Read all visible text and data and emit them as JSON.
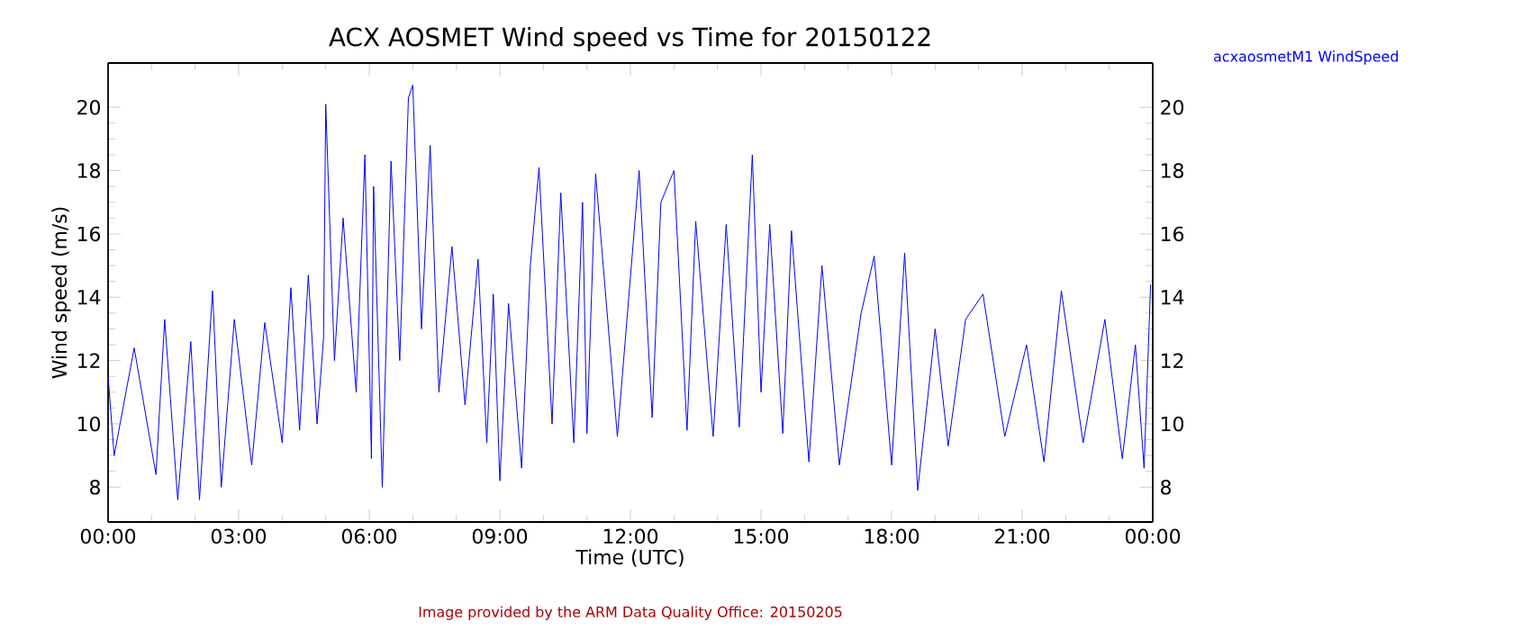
{
  "chart_data": {
    "type": "line",
    "title": "ACX AOSMET Wind speed vs Time for 20150122",
    "xlabel": "Time (UTC)",
    "ylabel": "Wind speed (m/s)",
    "annotations": [
      "Image provided by the ARM Data Quality Office: 20150205"
    ],
    "xlim": [
      0,
      24
    ],
    "xticks": [
      {
        "value": 0,
        "label": "00:00"
      },
      {
        "value": 3,
        "label": "03:00"
      },
      {
        "value": 6,
        "label": "06:00"
      },
      {
        "value": 9,
        "label": "09:00"
      },
      {
        "value": 12,
        "label": "12:00"
      },
      {
        "value": 15,
        "label": "15:00"
      },
      {
        "value": 18,
        "label": "18:00"
      },
      {
        "value": 21,
        "label": "21:00"
      },
      {
        "value": 24,
        "label": "00:00"
      }
    ],
    "ylim": [
      6.9,
      21.4
    ],
    "yticks": [
      8,
      10,
      12,
      14,
      16,
      18,
      20
    ],
    "y2lim": [
      6.9,
      21.4
    ],
    "y2ticks": [
      8,
      10,
      12,
      14,
      16,
      18,
      20
    ],
    "legend": "top right",
    "marker": "none",
    "series": [
      {
        "name": "acxaosmetM1 WindSpeed",
        "color": "#0000ff",
        "x": [
          0,
          0.14,
          0.6,
          1.1,
          1.3,
          1.6,
          1.9,
          2.1,
          2.4,
          2.6,
          2.9,
          3.3,
          3.6,
          4.0,
          4.2,
          4.4,
          4.6,
          4.8,
          4.95,
          5.0,
          5.2,
          5.4,
          5.7,
          5.9,
          6.05,
          6.1,
          6.3,
          6.5,
          6.7,
          6.9,
          7.0,
          7.2,
          7.4,
          7.6,
          7.9,
          8.2,
          8.5,
          8.7,
          8.85,
          9.0,
          9.2,
          9.5,
          9.7,
          9.9,
          10.2,
          10.4,
          10.7,
          10.9,
          11.0,
          11.2,
          11.7,
          12.2,
          12.5,
          12.7,
          13.0,
          13.3,
          13.5,
          13.9,
          14.2,
          14.5,
          14.8,
          15.0,
          15.2,
          15.5,
          15.7,
          16.1,
          16.4,
          16.8,
          17.3,
          17.6,
          18.0,
          18.3,
          18.6,
          19.0,
          19.3,
          19.7,
          20.1,
          20.6,
          21.1,
          21.5,
          21.9,
          22.4,
          22.9,
          23.3,
          23.6,
          23.8,
          23.95
        ],
        "values": [
          11.5,
          9.0,
          12.4,
          8.4,
          13.3,
          7.6,
          12.6,
          7.6,
          14.2,
          8.0,
          13.3,
          8.7,
          13.2,
          9.4,
          14.3,
          9.8,
          14.7,
          10.0,
          12.7,
          20.1,
          12.0,
          16.5,
          11.0,
          18.5,
          8.9,
          17.5,
          8.0,
          18.3,
          12.0,
          20.3,
          20.7,
          13.0,
          18.8,
          11.0,
          15.6,
          10.6,
          15.2,
          9.4,
          14.1,
          8.2,
          13.8,
          8.6,
          15.0,
          18.1,
          10.0,
          17.3,
          9.4,
          17.0,
          9.7,
          17.9,
          9.6,
          18.0,
          10.2,
          17.0,
          18.0,
          9.8,
          16.4,
          9.6,
          16.3,
          9.9,
          18.5,
          11.0,
          16.3,
          9.7,
          16.1,
          8.8,
          15.0,
          8.7,
          13.5,
          15.3,
          8.7,
          15.4,
          7.9,
          13.0,
          9.3,
          13.3,
          14.1,
          9.6,
          12.5,
          8.8,
          14.2,
          9.4,
          13.3,
          8.9,
          12.5,
          8.6,
          14.4
        ]
      }
    ]
  }
}
